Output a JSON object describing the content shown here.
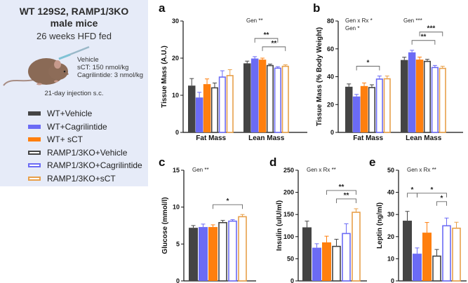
{
  "left_panel": {
    "title_line1": "WT 129S2, RAMP1/3KO",
    "title_line2": "male mice",
    "subtitle": "26 weeks HFD fed",
    "dose_lines": [
      "Vehicle",
      "sCT: 150 nmol/kg",
      "Cagrilintide:  3 nmol/kg"
    ],
    "injection": "21-day injection s.c.",
    "legend": [
      {
        "label": "WT+Vehicle",
        "fill": "#444444",
        "stroke": "#444444"
      },
      {
        "label": "WT+Cagrilintide",
        "fill": "#6b6bf5",
        "stroke": "#6b6bf5"
      },
      {
        "label": "WT+ sCT",
        "fill": "#ff7f0e",
        "stroke": "#ff7f0e"
      },
      {
        "label": "RAMP1/3KO+Vehicle",
        "fill": "#ffffff",
        "stroke": "#444444"
      },
      {
        "label": "RAMP1/3KO+Cagrilintide",
        "fill": "#ffffff",
        "stroke": "#6b6bf5"
      },
      {
        "label": "RAMP1/3KO+sCT",
        "fill": "#ffffff",
        "stroke": "#e8a04a"
      }
    ]
  },
  "chart_data": [
    {
      "id": "a",
      "type": "bar",
      "title": "",
      "panel_letter": "a",
      "ylabel": "Tissue Mass (A.U.)",
      "xlabel": "",
      "ylim": [
        0,
        30
      ],
      "yticks": [
        0,
        10,
        20,
        30
      ],
      "categories": [
        "Fat Mass",
        "Lean Mass"
      ],
      "series_names": [
        "WT+Vehicle",
        "WT+Cagrilintide",
        "WT+ sCT",
        "RAMP1/3KO+Vehicle",
        "RAMP1/3KO+Cagrilintide",
        "RAMP1/3KO+sCT"
      ],
      "values": [
        [
          12.6,
          9.4,
          13.0,
          12.0,
          14.9,
          15.3
        ],
        [
          18.6,
          19.9,
          19.6,
          18.0,
          17.3,
          17.8
        ]
      ],
      "errors": [
        [
          1.9,
          1.4,
          1.4,
          1.3,
          1.7,
          1.6
        ],
        [
          0.6,
          0.5,
          0.4,
          0.4,
          0.4,
          0.4
        ]
      ],
      "annotations": [
        {
          "text": "Gen **",
          "group": 1
        }
      ],
      "significance": [
        {
          "group": 1,
          "from": 1,
          "to": 4,
          "label": "**",
          "level": 1
        },
        {
          "group": 1,
          "from": 2,
          "to": 5,
          "label": "**",
          "level": 0
        }
      ]
    },
    {
      "id": "b",
      "type": "bar",
      "panel_letter": "b",
      "ylabel": "Tissue Mass (% Body Weight)",
      "xlabel": "",
      "ylim": [
        0,
        80
      ],
      "yticks": [
        0,
        20,
        40,
        60,
        80
      ],
      "categories": [
        "Fat Mass",
        "Lean Mass"
      ],
      "series_names": [
        "WT+Vehicle",
        "WT+Cagrilintide",
        "WT+ sCT",
        "RAMP1/3KO+Vehicle",
        "RAMP1/3KO+Cagrilintide",
        "RAMP1/3KO+sCT"
      ],
      "values": [
        [
          32.8,
          25.8,
          33.3,
          32.2,
          38.3,
          38.5
        ],
        [
          52.0,
          57.5,
          52.3,
          51.0,
          46.6,
          46.0
        ]
      ],
      "errors": [
        [
          2.0,
          1.5,
          2.2,
          2.0,
          2.2,
          2.0
        ],
        [
          2.0,
          1.5,
          1.8,
          1.5,
          1.5,
          1.5
        ]
      ],
      "annotations": [
        {
          "text": "Gen x Rx *",
          "group": 0,
          "line": 0
        },
        {
          "text": "Gen *",
          "group": 0,
          "line": 1
        },
        {
          "text": "Gen ***",
          "group": 1,
          "line": 0
        }
      ],
      "significance": [
        {
          "group": 0,
          "from": 1,
          "to": 4,
          "label": "*",
          "level": 0
        },
        {
          "group": 1,
          "from": 1,
          "to": 4,
          "label": "**",
          "level": 0
        },
        {
          "group": 1,
          "from": 2,
          "to": 5,
          "label": "***",
          "level": 1
        }
      ]
    },
    {
      "id": "c",
      "type": "bar",
      "panel_letter": "c",
      "ylabel": "Glucose (mmol/l)",
      "xlabel": "",
      "ylim": [
        0,
        15
      ],
      "yticks": [
        0,
        5,
        10,
        15
      ],
      "categories": [
        ""
      ],
      "series_names": [
        "WT+Vehicle",
        "WT+Cagrilintide",
        "WT+ sCT",
        "RAMP1/3KO+Vehicle",
        "RAMP1/3KO+Cagrilintide",
        "RAMP1/3KO+sCT"
      ],
      "values": [
        [
          7.2,
          7.3,
          7.3,
          7.9,
          8.1,
          8.7
        ]
      ],
      "errors": [
        [
          0.3,
          0.4,
          0.3,
          0.3,
          0.2,
          0.3
        ]
      ],
      "annotations": [
        {
          "text": "Gen **",
          "group": 0,
          "line": 0
        }
      ],
      "significance": [
        {
          "group": 0,
          "from": 2,
          "to": 5,
          "label": "*",
          "level": 0
        }
      ]
    },
    {
      "id": "d",
      "type": "bar",
      "panel_letter": "d",
      "ylabel": "Insulin (uIU/ml)",
      "xlabel": "",
      "ylim": [
        0,
        250
      ],
      "yticks": [
        0,
        50,
        100,
        150,
        200,
        250
      ],
      "categories": [
        ""
      ],
      "series_names": [
        "WT+Vehicle",
        "WT+Cagrilintide",
        "WT+ sCT",
        "RAMP1/3KO+Vehicle",
        "RAMP1/3KO+Cagrilintide",
        "RAMP1/3KO+sCT"
      ],
      "values": [
        [
          121,
          75,
          87,
          78,
          107,
          155
        ]
      ],
      "errors": [
        [
          14,
          9,
          14,
          16,
          22,
          8
        ]
      ],
      "annotations": [
        {
          "text": "Gen x Rx **",
          "group": 0,
          "line": 0
        }
      ],
      "significance": [
        {
          "group": 0,
          "from": 2,
          "to": 5,
          "label": "**",
          "level": 1
        },
        {
          "group": 0,
          "from": 3,
          "to": 5,
          "label": "**",
          "level": 0
        }
      ]
    },
    {
      "id": "e",
      "type": "bar",
      "panel_letter": "e",
      "ylabel": "Leptin (ng/ml)",
      "xlabel": "",
      "ylim": [
        0,
        50
      ],
      "yticks": [
        0,
        10,
        20,
        30,
        40,
        50
      ],
      "categories": [
        ""
      ],
      "series_names": [
        "WT+Vehicle",
        "WT+Cagrilintide",
        "WT+ sCT",
        "RAMP1/3KO+Vehicle",
        "RAMP1/3KO+Cagrilintide",
        "RAMP1/3KO+sCT"
      ],
      "values": [
        [
          27.2,
          12.3,
          21.8,
          11.2,
          24.9,
          23.8
        ]
      ],
      "errors": [
        [
          4.2,
          2.6,
          4.6,
          3.0,
          3.5,
          2.7
        ]
      ],
      "annotations": [
        {
          "text": "Gen x Rx **",
          "group": 0,
          "line": 0
        }
      ],
      "significance": [
        {
          "group": 0,
          "from": 0,
          "to": 1,
          "label": "*",
          "level": 1
        },
        {
          "group": 0,
          "from": 1,
          "to": 4,
          "label": "*",
          "level": 1
        },
        {
          "group": 0,
          "from": 3,
          "to": 4,
          "label": "*",
          "level": 0
        }
      ]
    }
  ]
}
